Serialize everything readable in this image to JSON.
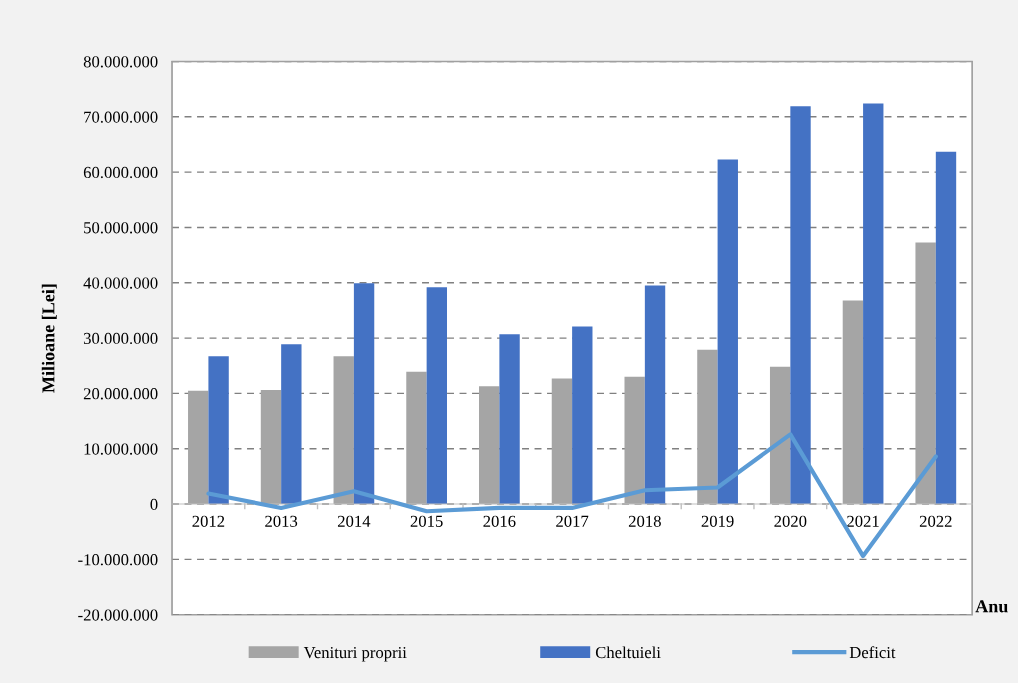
{
  "chart_data": {
    "type": "bar",
    "ylabel": "Milioane [Lei]",
    "xlabel": "Anu",
    "categories": [
      "2012",
      "2013",
      "2014",
      "2015",
      "2016",
      "2017",
      "2018",
      "2019",
      "2020",
      "2021",
      "2022"
    ],
    "series": [
      {
        "name": "Venituri proprii",
        "color": "#a5a5a5",
        "values": [
          20500000,
          20600000,
          26700000,
          23900000,
          21300000,
          22700000,
          23000000,
          27900000,
          24800000,
          36800000,
          47300000
        ]
      },
      {
        "name": "Cheltuieli",
        "color": "#4472c4",
        "values": [
          26700000,
          28900000,
          39900000,
          39200000,
          30700000,
          32100000,
          39500000,
          62300000,
          71900000,
          72400000,
          63700000
        ]
      },
      {
        "name": "Deficit",
        "type": "line",
        "color": "#5b9bd5",
        "values": [
          1900000,
          -700000,
          2300000,
          -1300000,
          -700000,
          -700000,
          2500000,
          3000000,
          12600000,
          -9400000,
          8600000
        ]
      }
    ],
    "ylim": [
      -20000000,
      80000000
    ],
    "yticks": [
      {
        "value": -20000000,
        "label": "-20.000.000"
      },
      {
        "value": -10000000,
        "label": "-10.000.000"
      },
      {
        "value": 0,
        "label": "0"
      },
      {
        "value": 10000000,
        "label": "10.000.000"
      },
      {
        "value": 20000000,
        "label": "20.000.000"
      },
      {
        "value": 30000000,
        "label": "30.000.000"
      },
      {
        "value": 40000000,
        "label": "40.000.000"
      },
      {
        "value": 50000000,
        "label": "50.000.000"
      },
      {
        "value": 60000000,
        "label": "60.000.000"
      },
      {
        "value": 70000000,
        "label": "70.000.000"
      },
      {
        "value": 80000000,
        "label": "80.000.000"
      }
    ],
    "grid": "y",
    "legend": "bottom",
    "line_style": "solid",
    "marker": "none"
  }
}
